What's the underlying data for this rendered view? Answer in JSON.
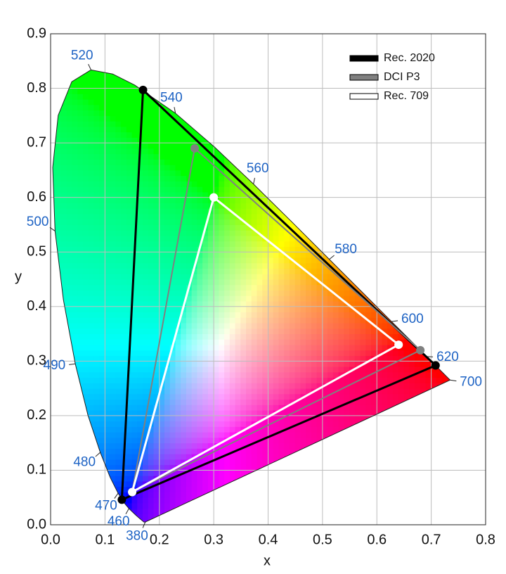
{
  "chart_data": {
    "type": "chromaticity",
    "xlabel": "x",
    "ylabel": "y",
    "xlim": [
      0,
      0.8
    ],
    "ylim": [
      0,
      0.9
    ],
    "xticks": [
      {
        "value": 0,
        "label": "0.0"
      },
      0.1,
      0.2,
      0.3,
      0.4,
      0.5,
      0.6,
      0.7,
      0.8
    ],
    "yticks": [
      {
        "value": 0,
        "label": "0.0"
      },
      0.1,
      0.2,
      0.3,
      0.4,
      0.5,
      0.6,
      0.7,
      0.8,
      0.9
    ],
    "grid": true,
    "legend": "upper right",
    "locus": {
      "x": [
        0.1741,
        0.1733,
        0.1714,
        0.1644,
        0.1566,
        0.144,
        0.1355,
        0.1241,
        0.1096,
        0.0913,
        0.0687,
        0.0454,
        0.0235,
        0.0082,
        0.0039,
        0.0139,
        0.0389,
        0.0743,
        0.1142,
        0.1547,
        0.2296,
        0.3016,
        0.3731,
        0.4441,
        0.5125,
        0.5752,
        0.627,
        0.6658,
        0.6915,
        0.719,
        0.7347
      ],
      "y": [
        0.005,
        0.0048,
        0.0051,
        0.0109,
        0.0177,
        0.0297,
        0.0399,
        0.0578,
        0.0868,
        0.1327,
        0.2007,
        0.295,
        0.4127,
        0.5384,
        0.6548,
        0.7502,
        0.812,
        0.8338,
        0.8262,
        0.8059,
        0.7543,
        0.6923,
        0.6245,
        0.5547,
        0.4866,
        0.4242,
        0.3725,
        0.334,
        0.3083,
        0.2809,
        0.2653
      ]
    },
    "wavelengths": [
      {
        "nm": 380,
        "x": 0.1741,
        "y": 0.005
      },
      {
        "nm": 460,
        "x": 0.144,
        "y": 0.0297
      },
      {
        "nm": 470,
        "x": 0.1241,
        "y": 0.0578
      },
      {
        "nm": 480,
        "x": 0.0913,
        "y": 0.1327
      },
      {
        "nm": 490,
        "x": 0.0454,
        "y": 0.295
      },
      {
        "nm": 500,
        "x": 0.0082,
        "y": 0.5384
      },
      {
        "nm": 520,
        "x": 0.0743,
        "y": 0.8338
      },
      {
        "nm": 540,
        "x": 0.2296,
        "y": 0.7543
      },
      {
        "nm": 560,
        "x": 0.3731,
        "y": 0.6245
      },
      {
        "nm": 580,
        "x": 0.5125,
        "y": 0.4866
      },
      {
        "nm": 600,
        "x": 0.627,
        "y": 0.3725
      },
      {
        "nm": 620,
        "x": 0.6915,
        "y": 0.3083
      },
      {
        "nm": 700,
        "x": 0.7347,
        "y": 0.2653
      }
    ],
    "series": [
      {
        "name": "Rec. 2020",
        "color": "#000000",
        "x": [
          0.708,
          0.17,
          0.131
        ],
        "y": [
          0.292,
          0.797,
          0.046
        ]
      },
      {
        "name": "DCI P3",
        "color": "#808080",
        "x": [
          0.68,
          0.265,
          0.15
        ],
        "y": [
          0.32,
          0.69,
          0.06
        ]
      },
      {
        "name": "Rec. 709",
        "color": "#ffffff",
        "x": [
          0.64,
          0.3,
          0.15
        ],
        "y": [
          0.33,
          0.6,
          0.06
        ]
      }
    ]
  }
}
